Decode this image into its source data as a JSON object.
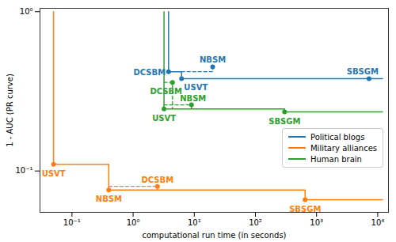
{
  "chart_data": {
    "type": "line",
    "x_label": "computational run time (in seconds)",
    "y_label": "1 - AUC (PR curve)",
    "log": true,
    "grid": false,
    "legend": "center right",
    "xlim": [
      0.03,
      15000
    ],
    "ylim": [
      0.055,
      1.05
    ],
    "xticks": [
      {
        "value": 0.1,
        "label": "10⁻¹"
      },
      {
        "value": 1,
        "label": "10⁰"
      },
      {
        "value": 10,
        "label": "10¹"
      },
      {
        "value": 100,
        "label": "10²"
      },
      {
        "value": 1000,
        "label": "10³"
      },
      {
        "value": 10000,
        "label": "10⁴"
      }
    ],
    "yticks": [
      {
        "value": 0.1,
        "label": "10⁻¹"
      },
      {
        "value": 1,
        "label": "10⁰"
      }
    ],
    "marker": "circle",
    "series": [
      {
        "name": "Political blogs",
        "color": "#1f77b4",
        "labels": [
          "DCSBM",
          "USVT",
          "NBSM",
          "SBSGM"
        ],
        "x": [
          3.8,
          6.2,
          20,
          7200
        ],
        "values": [
          0.42,
          0.38,
          0.45,
          0.38
        ],
        "step": {
          "x": [
            3.8,
            3.8,
            6.2,
            6.2,
            12000
          ],
          "y": [
            1.0,
            0.42,
            0.42,
            0.38,
            0.38
          ]
        },
        "dashed": {
          "x": [
            6.2,
            20,
            20
          ],
          "y": [
            0.42,
            0.42,
            0.45
          ]
        }
      },
      {
        "name": "Military alliances",
        "color": "#ff7f0e",
        "labels": [
          "USVT",
          "NBSM",
          "DCSBM",
          "SBSGM"
        ],
        "x": [
          0.05,
          0.4,
          2.5,
          650
        ],
        "values": [
          0.11,
          0.076,
          0.08,
          0.066
        ],
        "step": {
          "x": [
            0.05,
            0.05,
            0.4,
            0.4,
            650,
            650,
            12000
          ],
          "y": [
            1.0,
            0.11,
            0.11,
            0.076,
            0.076,
            0.066,
            0.066
          ]
        },
        "dashed": {
          "x": [
            0.4,
            2.5,
            2.5
          ],
          "y": [
            0.08,
            0.08,
            0.076
          ]
        }
      },
      {
        "name": "Human brain",
        "color": "#2ca02c",
        "labels": [
          "USVT",
          "DCSBM",
          "NBSM",
          "SBSGM"
        ],
        "x": [
          3.2,
          4.4,
          9,
          300
        ],
        "values": [
          0.245,
          0.36,
          0.26,
          0.235
        ],
        "step": {
          "x": [
            3.2,
            3.2,
            300,
            300,
            12000
          ],
          "y": [
            1.0,
            0.245,
            0.245,
            0.235,
            0.235
          ]
        },
        "dashed": {
          "x": [
            3.2,
            4.4,
            4.4,
            null,
            3.2,
            9,
            9
          ],
          "y": [
            0.36,
            0.36,
            0.245,
            null,
            0.26,
            0.26,
            0.245
          ]
        }
      }
    ]
  }
}
